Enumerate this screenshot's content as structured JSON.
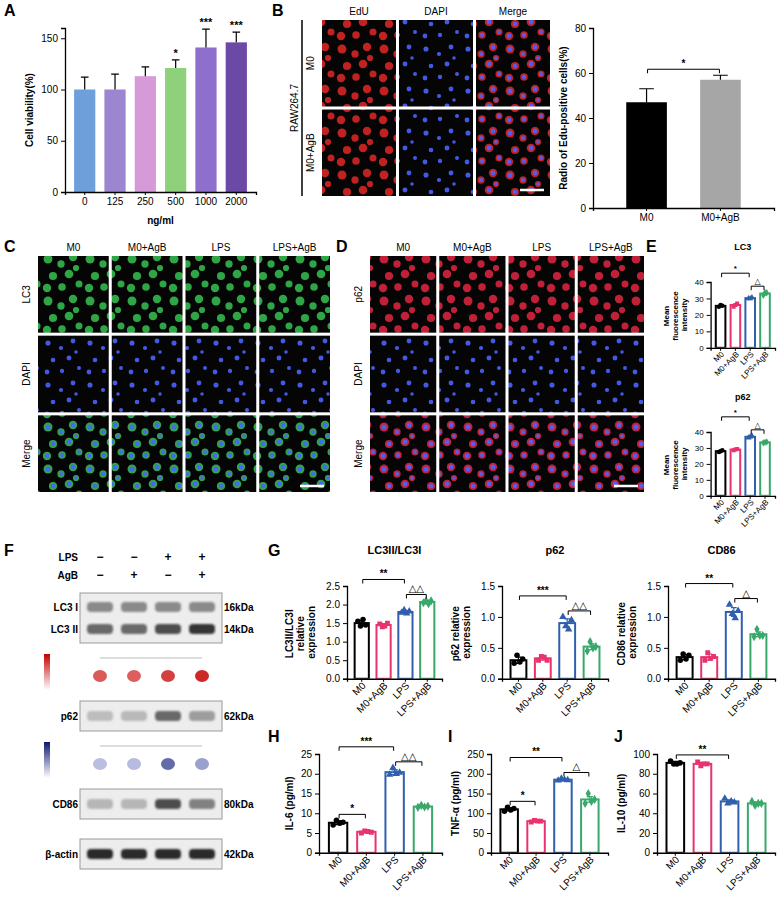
{
  "panel_letters": [
    "A",
    "B",
    "C",
    "D",
    "E",
    "F",
    "G",
    "H",
    "I",
    "J"
  ],
  "chart_data": [
    {
      "type": "bar",
      "categories": [
        "0",
        "125",
        "250",
        "500",
        "1000",
        "2000"
      ],
      "values": [
        100,
        100,
        113,
        121,
        141,
        146
      ],
      "errors": [
        12,
        15,
        9,
        8,
        18,
        10
      ],
      "colors": [
        "#6f9fdb",
        "#9b86cf",
        "#d79ad8",
        "#8fd17a",
        "#8e6fcb",
        "#6b49a6"
      ],
      "ylim": [
        0,
        160
      ],
      "yticks": [
        0,
        50,
        100,
        150
      ],
      "y_label": "Cell viability(%)",
      "x_label": "ng/ml",
      "annotations": [
        {
          "text": "*",
          "at": "500"
        },
        {
          "text": "***",
          "at": "1000"
        },
        {
          "text": "***",
          "at": "2000"
        }
      ]
    },
    {
      "type": "bar",
      "categories": [
        "M0",
        "M0+AgB"
      ],
      "values": [
        47,
        57
      ],
      "errors": [
        6,
        2
      ],
      "colors": [
        "#000000",
        "#a6a6a6"
      ],
      "ylim": [
        0,
        80
      ],
      "yticks": [
        0,
        20,
        40,
        60,
        80
      ],
      "y_label": "Radio of Edu-positive cells(%)",
      "annotations": [
        {
          "text": "*",
          "between": [
            "M0",
            "M0+AgB"
          ]
        }
      ]
    },
    {
      "type": "bar",
      "title": "LC3",
      "categories": [
        "M0",
        "M0+AgB",
        "LPS",
        "LPS+AgB"
      ],
      "values": [
        25.5,
        26,
        30.2,
        33
      ],
      "errors": [
        0.5,
        0.8,
        0.5,
        0.8
      ],
      "points": [
        [
          25,
          26,
          25.5
        ],
        [
          25,
          26,
          27
        ],
        [
          30,
          30,
          30.6
        ],
        [
          32,
          33.5,
          33.5
        ]
      ],
      "colors": [
        "#000000",
        "#e8336d",
        "#2f5fad",
        "#38a86b"
      ],
      "ylim": [
        0,
        40
      ],
      "yticks": [
        0,
        10,
        20,
        30,
        40
      ],
      "y_label": "Mean fluorescence intensity",
      "annotations": [
        {
          "text": "△",
          "between": [
            "LPS",
            "LPS+AgB"
          ]
        },
        {
          "text": "*",
          "between": [
            "M0",
            "LPS"
          ]
        }
      ]
    },
    {
      "type": "bar",
      "title": "p62",
      "categories": [
        "M0",
        "M0+AgB",
        "LPS",
        "LPS+AgB"
      ],
      "values": [
        28,
        29,
        37,
        33.5
      ],
      "errors": [
        0.6,
        0.4,
        0.5,
        0.3
      ],
      "points": [
        [
          27.5,
          28,
          28.5
        ],
        [
          28.6,
          29,
          29.4
        ],
        [
          36.4,
          37,
          37.6
        ],
        [
          33.2,
          33.5,
          33.8
        ]
      ],
      "colors": [
        "#000000",
        "#e8336d",
        "#2f5fad",
        "#38a86b"
      ],
      "ylim": [
        0,
        40
      ],
      "yticks": [
        0,
        10,
        20,
        30,
        40
      ],
      "y_label": "Mean fluorescence intensity",
      "annotations": [
        {
          "text": "△",
          "between": [
            "LPS",
            "LPS+AgB"
          ]
        },
        {
          "text": "*",
          "between": [
            "M0",
            "LPS"
          ]
        }
      ]
    },
    {
      "type": "bar",
      "title": "LC3II/LC3I",
      "categories": [
        "M0",
        "M0+AgB",
        "LPS",
        "LPS+AgB"
      ],
      "values": [
        1.5,
        1.45,
        1.8,
        2.07
      ],
      "errors": [
        0.06,
        0.04,
        0.04,
        0.04
      ],
      "points": [
        [
          1.55,
          1.42,
          1.6,
          1.45
        ],
        [
          1.48,
          1.4,
          1.42,
          1.5
        ],
        [
          1.78,
          1.85,
          1.76,
          1.82
        ],
        [
          2.05,
          2.1,
          2.02,
          2.1
        ]
      ],
      "colors": [
        "#000000",
        "#e8336d",
        "#2f5fad",
        "#38a86b"
      ],
      "ylim": [
        0,
        2.5
      ],
      "yticks": [
        {
          "value": 0,
          "label": "0.0"
        },
        0.5,
        {
          "value": 1,
          "label": "1.0"
        },
        1.5,
        {
          "value": 2,
          "label": "2.0"
        },
        2.5
      ],
      "y_label": "LC3II/LC3I relative expression",
      "annotations": [
        {
          "text": "△△",
          "between": [
            "LPS",
            "LPS+AgB"
          ]
        },
        {
          "text": "**",
          "between": [
            "M0",
            "LPS"
          ]
        }
      ]
    },
    {
      "type": "bar",
      "title": "p62",
      "categories": [
        "M0",
        "M0+AgB",
        "LPS",
        "LPS+AgB"
      ],
      "values": [
        0.3,
        0.33,
        0.9,
        0.52
      ],
      "errors": [
        0.05,
        0.03,
        0.07,
        0.05
      ],
      "points": [
        [
          0.25,
          0.38,
          0.27,
          0.32
        ],
        [
          0.3,
          0.36,
          0.35,
          0.3
        ],
        [
          1.0,
          0.85,
          0.8,
          0.95
        ],
        [
          0.45,
          0.6,
          0.5,
          0.52
        ]
      ],
      "colors": [
        "#000000",
        "#e8336d",
        "#2f5fad",
        "#38a86b"
      ],
      "ylim": [
        0,
        1.5
      ],
      "yticks": [
        {
          "value": 0,
          "label": "0.0"
        },
        0.5,
        {
          "value": 1,
          "label": "1.0"
        },
        1.5
      ],
      "y_label": "p62 relative expression",
      "annotations": [
        {
          "text": "△△",
          "between": [
            "LPS",
            "LPS+AgB"
          ]
        },
        {
          "text": "***",
          "between": [
            "M0",
            "LPS"
          ]
        }
      ]
    },
    {
      "type": "bar",
      "title": "CD86",
      "categories": [
        "M0",
        "M0+AgB",
        "LPS",
        "LPS+AgB"
      ],
      "values": [
        0.35,
        0.35,
        1.08,
        0.72
      ],
      "errors": [
        0.04,
        0.05,
        0.07,
        0.04
      ],
      "points": [
        [
          0.3,
          0.4,
          0.32,
          0.38
        ],
        [
          0.3,
          0.42,
          0.33,
          0.36
        ],
        [
          1.2,
          1.05,
          0.98,
          1.1
        ],
        [
          0.68,
          0.8,
          0.7,
          0.7
        ]
      ],
      "colors": [
        "#000000",
        "#e8336d",
        "#2f5fad",
        "#38a86b"
      ],
      "ylim": [
        0,
        1.5
      ],
      "yticks": [
        {
          "value": 0,
          "label": "0.0"
        },
        0.5,
        {
          "value": 1,
          "label": "1.0"
        },
        1.5
      ],
      "y_label": "CD86 relative expression",
      "annotations": [
        {
          "text": "△",
          "between": [
            "LPS",
            "LPS+AgB"
          ]
        },
        {
          "text": "**",
          "between": [
            "M0",
            "LPS"
          ]
        }
      ]
    },
    {
      "type": "bar",
      "categories": [
        "M0",
        "M0+AgB",
        "LPS",
        "LPS+AgB"
      ],
      "values": [
        7.6,
        5.3,
        20.4,
        11.7
      ],
      "errors": [
        0.5,
        0.3,
        0.6,
        0.3
      ],
      "points": [
        [
          7,
          8.2,
          7.5,
          7.7
        ],
        [
          5,
          5.5,
          5.4,
          5.2
        ],
        [
          19.8,
          21.5,
          20,
          20.3
        ],
        [
          11.5,
          12,
          11.6,
          11.8
        ]
      ],
      "colors": [
        "#000000",
        "#e8336d",
        "#2f5fad",
        "#38a86b"
      ],
      "ylim": [
        0,
        25
      ],
      "yticks": [
        0,
        5,
        10,
        15,
        20,
        25
      ],
      "y_label": "IL-6 (pg/ml)",
      "annotations": [
        {
          "text": "*",
          "between": [
            "M0",
            "M0+AgB"
          ]
        },
        {
          "text": "△△",
          "between": [
            "LPS",
            "LPS+AgB"
          ]
        },
        {
          "text": "***",
          "between": [
            "M0",
            "LPS"
          ]
        }
      ]
    },
    {
      "type": "bar",
      "categories": [
        "M0",
        "M0+AgB",
        "LPS",
        "LPS+AgB"
      ],
      "values": [
        110,
        80,
        185,
        135
      ],
      "errors": [
        4,
        2,
        2,
        7
      ],
      "points": [
        [
          105,
          115,
          108,
          112
        ],
        [
          78,
          82,
          80,
          80
        ],
        [
          183,
          188,
          185,
          184
        ],
        [
          125,
          150,
          130,
          135
        ]
      ],
      "colors": [
        "#000000",
        "#e8336d",
        "#2f5fad",
        "#38a86b"
      ],
      "ylim": [
        0,
        250
      ],
      "yticks": [
        0,
        50,
        100,
        150,
        200,
        250
      ],
      "y_label": "TNF-α (pg/ml)",
      "annotations": [
        {
          "text": "*",
          "between": [
            "M0",
            "M0+AgB"
          ]
        },
        {
          "text": "△",
          "between": [
            "LPS",
            "LPS+AgB"
          ]
        },
        {
          "text": "**",
          "between": [
            "M0",
            "LPS"
          ]
        }
      ]
    },
    {
      "type": "bar",
      "categories": [
        "M0",
        "M0+AgB",
        "LPS",
        "LPS+AgB"
      ],
      "values": [
        91,
        90,
        52,
        50
      ],
      "errors": [
        1.5,
        1.5,
        1.5,
        1.5
      ],
      "points": [
        [
          93,
          90,
          90,
          91
        ],
        [
          92,
          88,
          90,
          90
        ],
        [
          55,
          50,
          52,
          51
        ],
        [
          52,
          48,
          50,
          50
        ]
      ],
      "colors": [
        "#000000",
        "#e8336d",
        "#2f5fad",
        "#38a86b"
      ],
      "ylim": [
        0,
        100
      ],
      "yticks": [
        0,
        20,
        40,
        60,
        80,
        100
      ],
      "y_label": "IL-10 (pg/ml)",
      "annotations": [
        {
          "text": "**",
          "between": [
            "M0",
            "LPS"
          ]
        }
      ]
    }
  ],
  "image_panels": [
    {
      "row_group": "RAW264.7",
      "columns": [
        "EdU",
        "DAPI",
        "Merge"
      ],
      "rows": [
        "M0",
        "M0+AgB"
      ],
      "color": "#ff2a2a"
    },
    {
      "columns": [
        "M0",
        "M0+AgB",
        "LPS",
        "LPS+AgB"
      ],
      "rows": [
        "LC3",
        "DAPI",
        "Merge"
      ],
      "color": "#3ddc5a"
    },
    {
      "columns": [
        "M0",
        "M0+AgB",
        "LPS",
        "LPS+AgB"
      ],
      "rows": [
        "p62",
        "DAPI",
        "Merge"
      ],
      "color": "#ff2a4a"
    }
  ],
  "blot": {
    "conditions": [
      {
        "name": "LPS",
        "signs": [
          "−",
          "−",
          "+",
          "+"
        ]
      },
      {
        "name": "AgB",
        "signs": [
          "−",
          "+",
          "−",
          "+"
        ]
      }
    ],
    "rows": [
      {
        "labels": [
          "LC3 I",
          "LC3 II"
        ],
        "sizes": [
          "16kDa",
          "14kDa"
        ]
      },
      {
        "labels": [
          "p62"
        ],
        "sizes": [
          "62kDa"
        ]
      },
      {
        "labels": [
          "CD86"
        ],
        "sizes": [
          "80kDa"
        ]
      },
      {
        "labels": [
          "β-actin"
        ],
        "sizes": [
          "42kDa"
        ]
      }
    ]
  }
}
